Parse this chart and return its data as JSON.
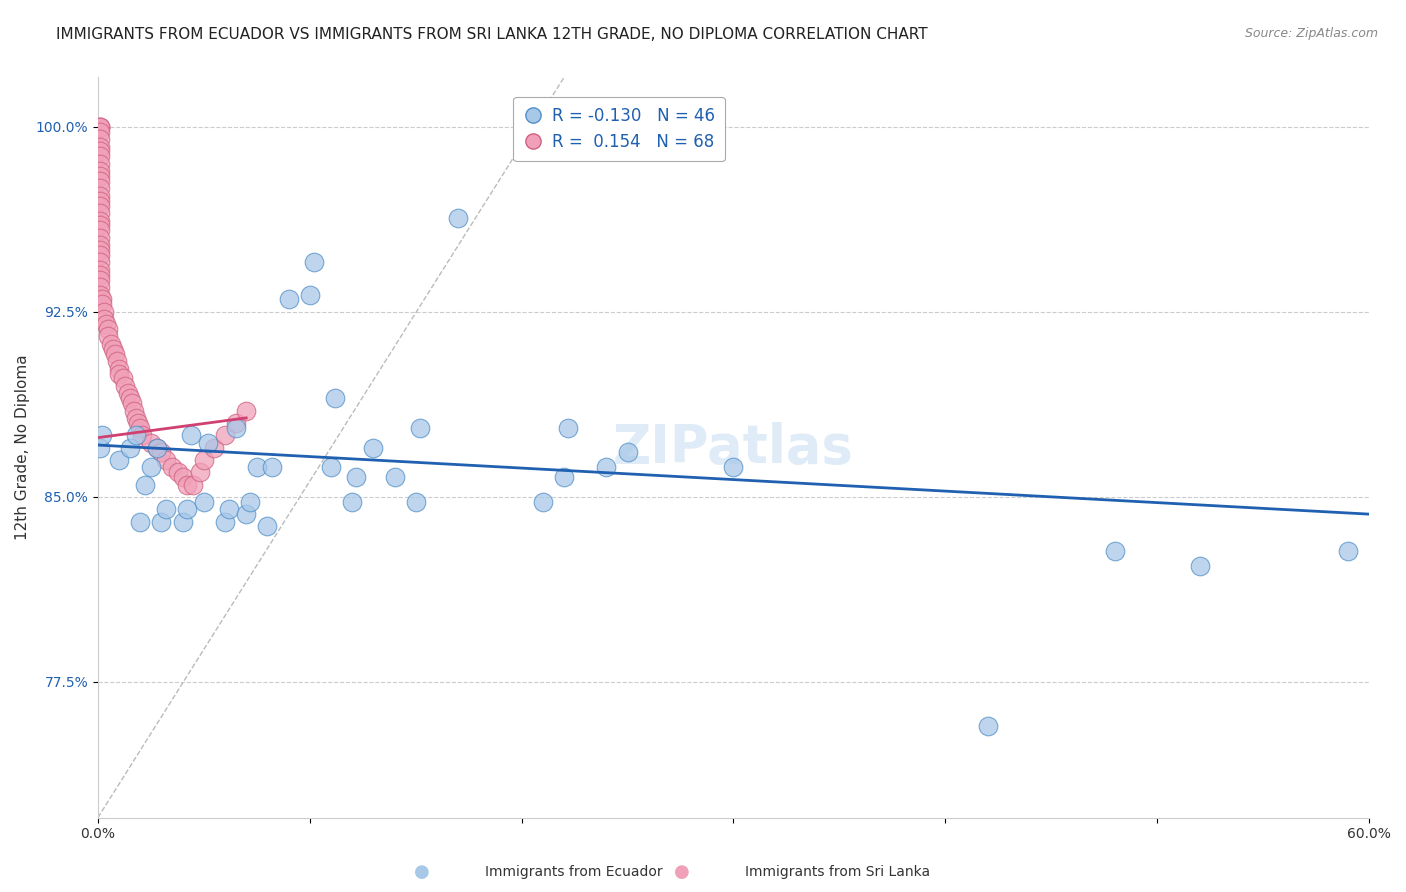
{
  "title": "IMMIGRANTS FROM ECUADOR VS IMMIGRANTS FROM SRI LANKA 12TH GRADE, NO DIPLOMA CORRELATION CHART",
  "source": "Source: ZipAtlas.com",
  "ylabel": "12th Grade, No Diploma",
  "xlabel": "",
  "xlim": [
    0.0,
    0.6
  ],
  "ylim": [
    0.72,
    1.02
  ],
  "xticks": [
    0.0,
    0.1,
    0.2,
    0.3,
    0.4,
    0.5,
    0.6
  ],
  "xticklabels": [
    "0.0%",
    "",
    "",
    "",
    "",
    "",
    "60.0%"
  ],
  "ytick_positions": [
    0.775,
    0.85,
    0.925,
    1.0
  ],
  "yticklabels": [
    "77.5%",
    "85.0%",
    "92.5%",
    "100.0%"
  ],
  "watermark": "ZIPatlas",
  "legend_ecuador_R": "-0.130",
  "legend_ecuador_N": "46",
  "legend_srilanka_R": "0.154",
  "legend_srilanka_N": "68",
  "ecuador_color": "#a8c8e8",
  "srilanka_color": "#f0a0b8",
  "ecuador_edge_color": "#5090c8",
  "srilanka_edge_color": "#d06080",
  "ecuador_line_color": "#2060b0",
  "srilanka_line_color": "#d04070",
  "ecuador_scatter_x": [
    0.001,
    0.002,
    0.01,
    0.015,
    0.018,
    0.02,
    0.022,
    0.025,
    0.028,
    0.03,
    0.032,
    0.04,
    0.042,
    0.044,
    0.05,
    0.052,
    0.06,
    0.062,
    0.065,
    0.07,
    0.072,
    0.075,
    0.08,
    0.082,
    0.09,
    0.1,
    0.102,
    0.11,
    0.112,
    0.12,
    0.122,
    0.13,
    0.14,
    0.15,
    0.152,
    0.17,
    0.21,
    0.22,
    0.222,
    0.24,
    0.25,
    0.3,
    0.42,
    0.48,
    0.52,
    0.59
  ],
  "ecuador_scatter_y": [
    0.87,
    0.875,
    0.865,
    0.87,
    0.875,
    0.84,
    0.855,
    0.862,
    0.87,
    0.84,
    0.845,
    0.84,
    0.845,
    0.875,
    0.848,
    0.872,
    0.84,
    0.845,
    0.878,
    0.843,
    0.848,
    0.862,
    0.838,
    0.862,
    0.93,
    0.932,
    0.945,
    0.862,
    0.89,
    0.848,
    0.858,
    0.87,
    0.858,
    0.848,
    0.878,
    0.963,
    0.848,
    0.858,
    0.878,
    0.862,
    0.868,
    0.862,
    0.757,
    0.828,
    0.822,
    0.828
  ],
  "srilanka_scatter_x": [
    0.001,
    0.001,
    0.001,
    0.001,
    0.001,
    0.001,
    0.001,
    0.001,
    0.001,
    0.001,
    0.001,
    0.001,
    0.001,
    0.001,
    0.001,
    0.001,
    0.001,
    0.001,
    0.001,
    0.001,
    0.001,
    0.001,
    0.001,
    0.001,
    0.001,
    0.001,
    0.001,
    0.001,
    0.001,
    0.001,
    0.002,
    0.002,
    0.003,
    0.003,
    0.004,
    0.005,
    0.005,
    0.006,
    0.007,
    0.008,
    0.009,
    0.01,
    0.01,
    0.012,
    0.013,
    0.014,
    0.015,
    0.016,
    0.017,
    0.018,
    0.019,
    0.02,
    0.021,
    0.025,
    0.028,
    0.03,
    0.032,
    0.035,
    0.038,
    0.04,
    0.042,
    0.045,
    0.048,
    0.05,
    0.055,
    0.06,
    0.065,
    0.07
  ],
  "srilanka_scatter_y": [
    1.0,
    1.0,
    1.0,
    0.998,
    0.995,
    0.992,
    0.99,
    0.988,
    0.985,
    0.982,
    0.98,
    0.978,
    0.975,
    0.972,
    0.97,
    0.968,
    0.965,
    0.962,
    0.96,
    0.958,
    0.955,
    0.952,
    0.95,
    0.948,
    0.945,
    0.942,
    0.94,
    0.938,
    0.935,
    0.932,
    0.93,
    0.928,
    0.925,
    0.922,
    0.92,
    0.918,
    0.915,
    0.912,
    0.91,
    0.908,
    0.905,
    0.902,
    0.9,
    0.898,
    0.895,
    0.892,
    0.89,
    0.888,
    0.885,
    0.882,
    0.88,
    0.878,
    0.875,
    0.872,
    0.87,
    0.868,
    0.865,
    0.862,
    0.86,
    0.858,
    0.855,
    0.855,
    0.86,
    0.865,
    0.87,
    0.875,
    0.88,
    0.885
  ],
  "diag_line_x": [
    0.0,
    0.22
  ],
  "diag_line_y": [
    0.72,
    1.02
  ],
  "title_fontsize": 11,
  "axis_label_fontsize": 11,
  "tick_fontsize": 10,
  "watermark_fontsize": 38,
  "background_color": "#ffffff",
  "grid_color": "#cccccc",
  "ecuador_trendline_x": [
    0.0,
    0.6
  ],
  "ecuador_trendline_y": [
    0.871,
    0.843
  ],
  "srilanka_trendline_x": [
    0.0,
    0.07
  ],
  "srilanka_trendline_y": [
    0.874,
    0.882
  ]
}
